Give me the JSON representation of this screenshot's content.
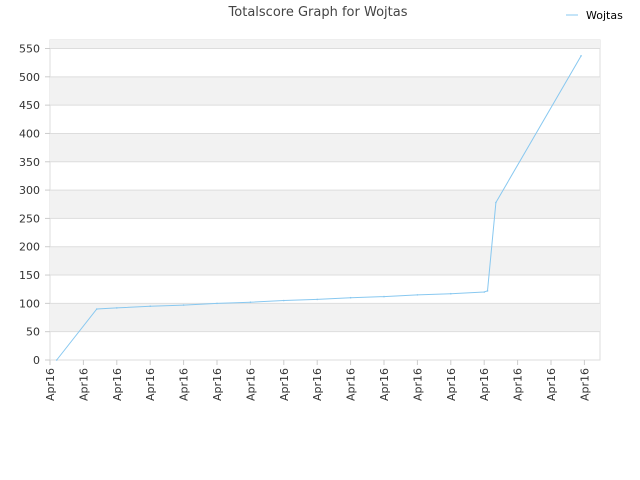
{
  "chart_data": {
    "type": "line",
    "title": "Totalscore Graph for Wojtas",
    "xlabel": "",
    "ylabel": "",
    "x_ticks": [
      "Apr16",
      "Apr16",
      "Apr16",
      "Apr16",
      "Apr16",
      "Apr16",
      "Apr16",
      "Apr16",
      "Apr16",
      "Apr16",
      "Apr16",
      "Apr16",
      "Apr16",
      "Apr16",
      "Apr16",
      "Apr16",
      "Apr16"
    ],
    "ylim": [
      0,
      565
    ],
    "y_ticks": [
      0,
      50,
      100,
      150,
      200,
      250,
      300,
      350,
      400,
      450,
      500,
      550
    ],
    "grid": "alternating horizontal bands",
    "legend_position": "top-right",
    "colors": {
      "series": "#88c8f0",
      "band": "#f2f2f2",
      "grid": "#dddddd"
    },
    "series": [
      {
        "name": "Wojtas",
        "values": [
          0,
          90,
          92,
          95,
          97,
          100,
          102,
          105,
          107,
          110,
          112,
          115,
          117,
          120,
          122,
          278,
          537
        ],
        "x_index": [
          0.2,
          1.4,
          2,
          3,
          4,
          5,
          6,
          7,
          8,
          9,
          10,
          11,
          12,
          13,
          13.1,
          13.35,
          15.9
        ]
      }
    ]
  }
}
